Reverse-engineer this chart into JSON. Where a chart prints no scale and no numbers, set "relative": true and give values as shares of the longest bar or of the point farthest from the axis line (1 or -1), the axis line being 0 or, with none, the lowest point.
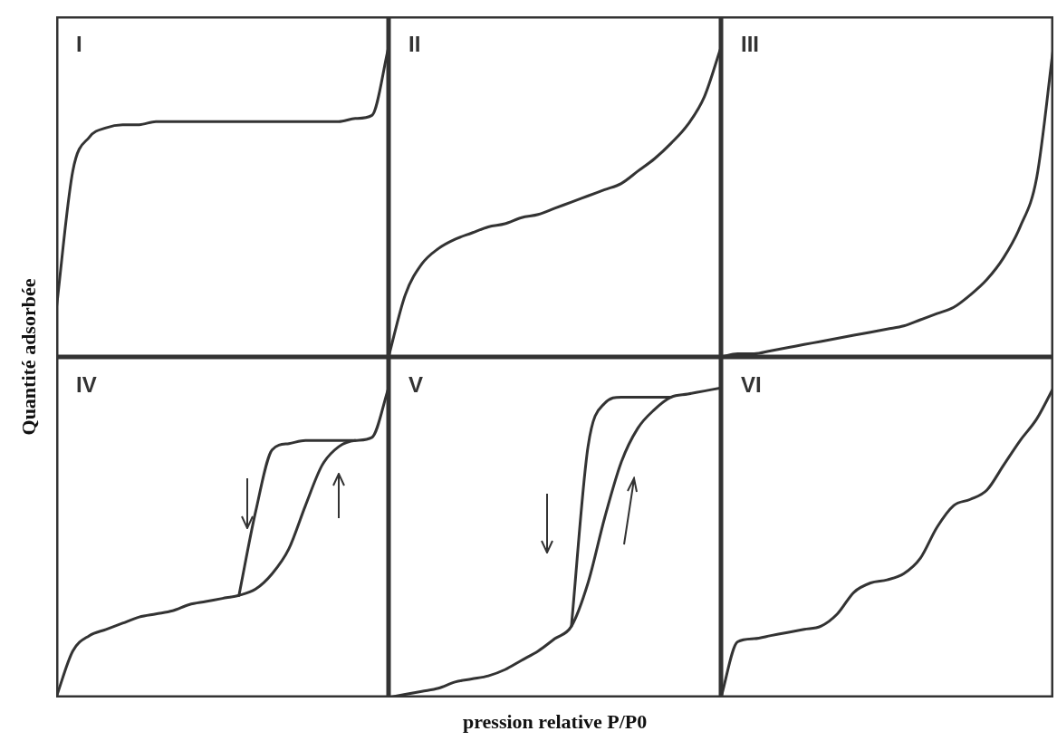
{
  "chart_data": [
    {
      "type": "line",
      "title": "I",
      "ylabel": "Quantité adsorbée",
      "relative": true,
      "categories": [
        null,
        null,
        null,
        null,
        null,
        null,
        null,
        null,
        null,
        null,
        null,
        null,
        null,
        null,
        null,
        null,
        null,
        null,
        null,
        null,
        null
      ],
      "series": [
        {
          "color": "#333333",
          "values": [
            0.15,
            0.6,
            0.71,
            0.74,
            0.75,
            0.75,
            0.76,
            0.76,
            0.76,
            0.76,
            0.76,
            0.76,
            0.76,
            0.76,
            0.76,
            0.76,
            0.76,
            0.76,
            0.77,
            0.78,
            1
          ]
        }
      ]
    },
    {
      "type": "line",
      "title": "II",
      "relative": true,
      "categories": [
        null,
        null,
        null,
        null,
        null,
        null,
        null,
        null,
        null,
        null,
        null,
        null,
        null,
        null,
        null,
        null,
        null,
        null,
        null,
        null,
        null
      ],
      "series": [
        {
          "color": "#333333",
          "values": [
            0,
            0.2,
            0.3,
            0.35,
            0.38,
            0.4,
            0.42,
            0.43,
            0.45,
            0.46,
            0.48,
            0.5,
            0.52,
            0.54,
            0.56,
            0.6,
            0.64,
            0.69,
            0.75,
            0.84,
            1
          ]
        }
      ]
    },
    {
      "type": "line",
      "title": "III",
      "relative": true,
      "categories": [
        null,
        null,
        null,
        null,
        null,
        null,
        null,
        null,
        null,
        null,
        null,
        null,
        null,
        null,
        null,
        null,
        null,
        null,
        null,
        null,
        null
      ],
      "series": [
        {
          "color": "#333333",
          "values": [
            0,
            0.01,
            0.01,
            0.02,
            0.03,
            0.04,
            0.05,
            0.06,
            0.07,
            0.08,
            0.09,
            0.1,
            0.12,
            0.14,
            0.16,
            0.2,
            0.25,
            0.32,
            0.42,
            0.58,
            1
          ]
        }
      ]
    },
    {
      "type": "line",
      "title": "IV",
      "relative": true,
      "categories": [
        null,
        null,
        null,
        null,
        null,
        null,
        null,
        null,
        null,
        null,
        null,
        null,
        null,
        null,
        null,
        null,
        null,
        null,
        null,
        null,
        null
      ],
      "series": [
        {
          "color": "#333333",
          "values": [
            0,
            0.15,
            0.2,
            0.22,
            0.24,
            0.26,
            0.27,
            0.28,
            0.3,
            0.31,
            0.32,
            0.33,
            0.35,
            0.4,
            0.48,
            0.62,
            0.75,
            0.81,
            0.83,
            0.84,
            1
          ]
        },
        {
          "color": "#333333",
          "values": [
            null,
            null,
            null,
            null,
            null,
            null,
            null,
            null,
            null,
            null,
            null,
            0.33,
            0.6,
            0.8,
            0.82,
            0.83,
            0.83,
            0.83,
            0.83,
            null,
            null
          ]
        }
      ]
    },
    {
      "type": "line",
      "title": "V",
      "xlabel": "pression relative P/P0",
      "relative": true,
      "categories": [
        null,
        null,
        null,
        null,
        null,
        null,
        null,
        null,
        null,
        null,
        null,
        null,
        null,
        null,
        null,
        null,
        null,
        null,
        null,
        null,
        null
      ],
      "series": [
        {
          "color": "#333333",
          "values": [
            0,
            0.01,
            0.02,
            0.03,
            0.05,
            0.06,
            0.07,
            0.09,
            0.12,
            0.15,
            0.19,
            0.23,
            0.37,
            0.58,
            0.76,
            0.87,
            0.93,
            0.97,
            0.98,
            0.99,
            1
          ]
        },
        {
          "color": "#333333",
          "values": [
            null,
            null,
            null,
            null,
            null,
            null,
            null,
            null,
            null,
            null,
            null,
            0.23,
            0.81,
            0.95,
            0.97,
            0.97,
            0.97,
            0.97,
            null,
            null,
            null
          ]
        }
      ]
    },
    {
      "type": "line",
      "title": "VI",
      "relative": true,
      "categories": [
        null,
        null,
        null,
        null,
        null,
        null,
        null,
        null,
        null,
        null,
        null,
        null,
        null,
        null,
        null,
        null,
        null,
        null,
        null,
        null,
        null
      ],
      "series": [
        {
          "color": "#333333",
          "values": [
            0,
            0.18,
            0.19,
            0.2,
            0.21,
            0.22,
            0.23,
            0.27,
            0.34,
            0.37,
            0.38,
            0.4,
            0.45,
            0.55,
            0.62,
            0.64,
            0.67,
            0.75,
            0.83,
            0.9,
            1
          ]
        }
      ]
    }
  ]
}
